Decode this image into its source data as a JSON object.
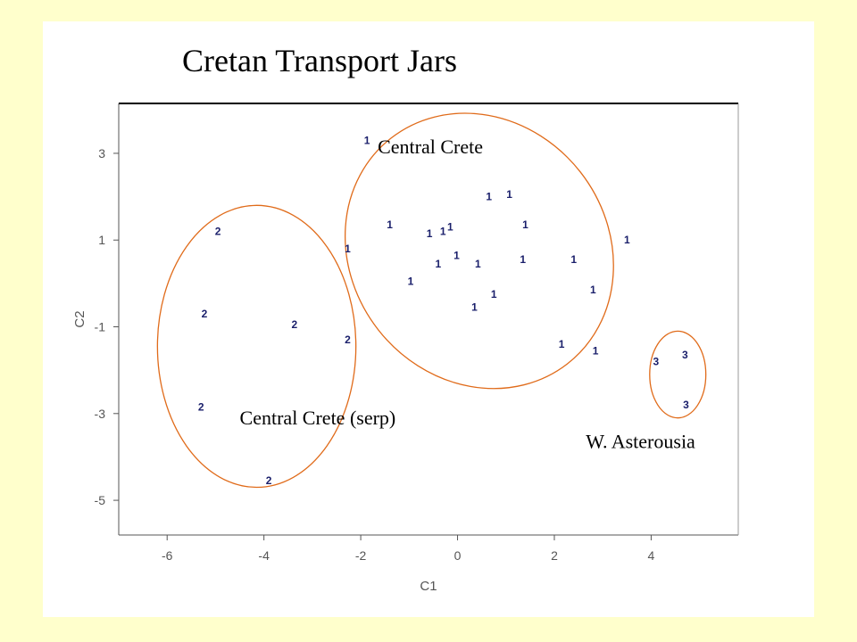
{
  "chart_data": {
    "type": "scatter",
    "title": "Cretan Transport Jars",
    "xlabel": "C1",
    "ylabel": "C2",
    "xlim": [
      -7,
      5.8
    ],
    "ylim": [
      -5.8,
      4.15
    ],
    "xticks": [
      -6,
      -4,
      -2,
      0,
      2,
      4
    ],
    "yticks": [
      3,
      1,
      -1,
      -3,
      -5
    ],
    "grid": false,
    "series": [
      {
        "marker": "1",
        "points": [
          [
            -1.87,
            3.3
          ],
          [
            -2.27,
            0.8
          ],
          [
            -1.4,
            1.35
          ],
          [
            -0.58,
            1.15
          ],
          [
            -0.3,
            1.2
          ],
          [
            -0.15,
            1.3
          ],
          [
            -0.4,
            0.45
          ],
          [
            -0.02,
            0.65
          ],
          [
            0.42,
            0.45
          ],
          [
            -0.97,
            0.05
          ],
          [
            0.65,
            2.0
          ],
          [
            1.07,
            2.05
          ],
          [
            1.4,
            1.35
          ],
          [
            1.35,
            0.55
          ],
          [
            2.4,
            0.55
          ],
          [
            3.5,
            1.0
          ],
          [
            0.75,
            -0.25
          ],
          [
            0.35,
            -0.55
          ],
          [
            2.8,
            -0.15
          ],
          [
            2.15,
            -1.4
          ],
          [
            2.85,
            -1.55
          ]
        ],
        "color": "#1a1f6b"
      },
      {
        "marker": "2",
        "points": [
          [
            -4.95,
            1.2
          ],
          [
            -5.23,
            -0.7
          ],
          [
            -3.37,
            -0.95
          ],
          [
            -2.27,
            -1.3
          ],
          [
            -5.3,
            -2.85
          ],
          [
            -3.9,
            -4.55
          ]
        ],
        "color": "#1a1f6b"
      },
      {
        "marker": "3",
        "points": [
          [
            4.1,
            -1.8
          ],
          [
            4.7,
            -1.65
          ],
          [
            4.72,
            -2.8
          ]
        ],
        "color": "#1a1f6b"
      }
    ],
    "annotations": [
      {
        "text": "Central Crete",
        "x": -1.65,
        "y": 3.0
      },
      {
        "text": "Central Crete (serp)",
        "x": -4.5,
        "y": -3.25
      },
      {
        "text": "W. Asterousia",
        "x": 2.65,
        "y": -3.8
      }
    ],
    "ellipses": [
      {
        "cx": 0.45,
        "cy": 0.75,
        "rx": 2.65,
        "ry": 3.3,
        "rotation": -38
      },
      {
        "cx": -4.15,
        "cy": -1.45,
        "rx": 2.05,
        "ry": 3.25,
        "rotation": 0
      },
      {
        "cx": 4.55,
        "cy": -2.1,
        "rx": 0.58,
        "ry": 1.0,
        "rotation": 0
      }
    ],
    "ellipse_color": "#e06b1a"
  }
}
